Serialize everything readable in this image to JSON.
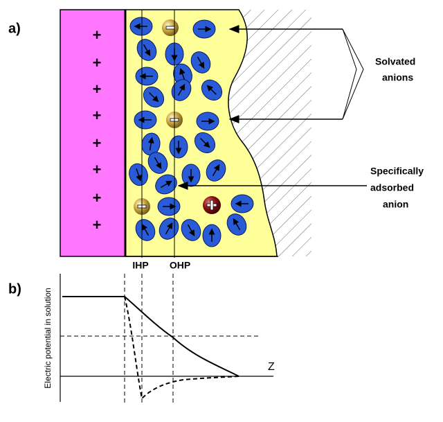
{
  "panel_a": {
    "label": "a)",
    "charges": [
      "+",
      "+",
      "+",
      "+",
      "+",
      "+",
      "+",
      "+"
    ],
    "callout_solvated": [
      "Solvated",
      "anions"
    ],
    "callout_adsorbed": [
      "Specifically",
      "adsorbed",
      "anion"
    ],
    "ihp_label": "IHP",
    "ohp_label": "OHP"
  },
  "panel_b": {
    "label": "b)",
    "y_axis_label": "Electric potential in solution",
    "x_axis_label": "Z"
  }
}
